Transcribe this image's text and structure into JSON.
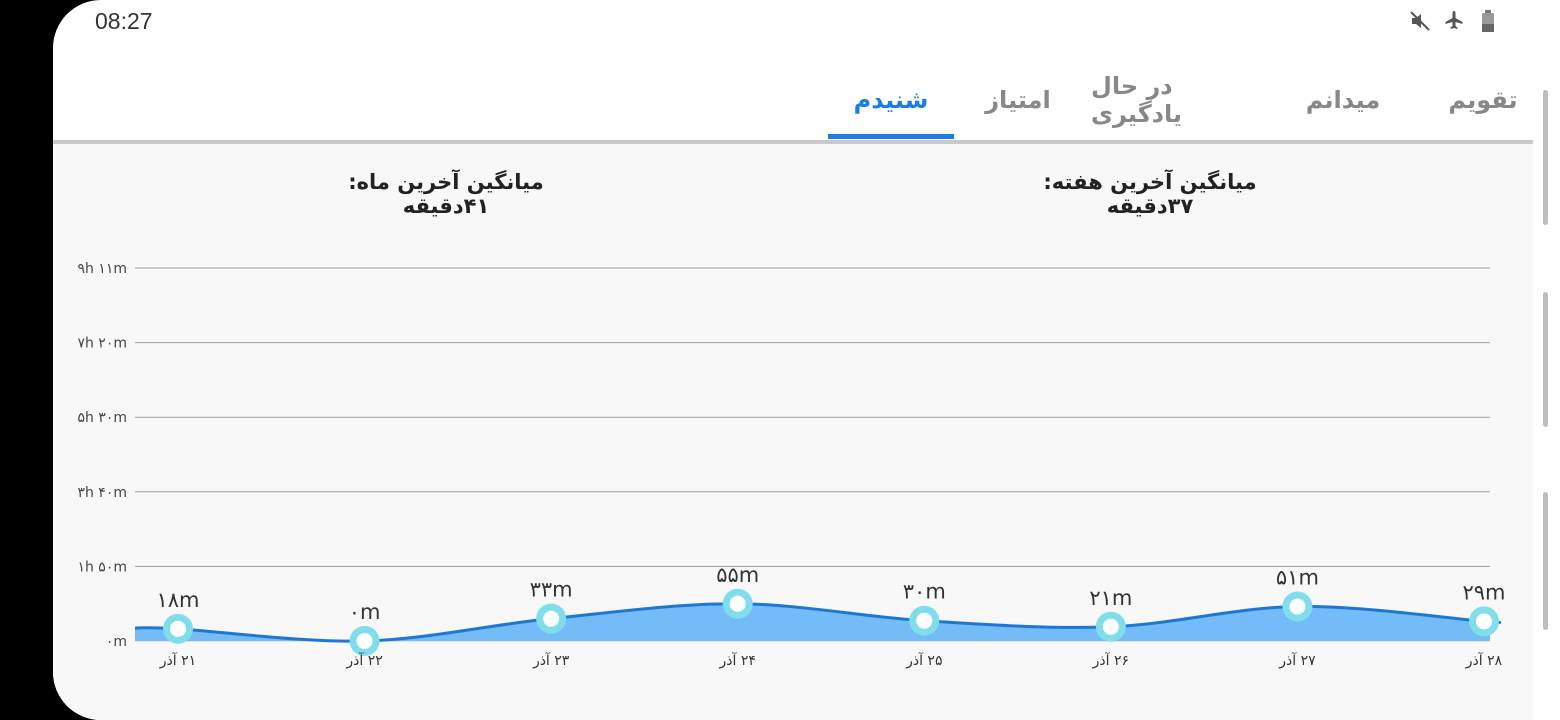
{
  "status": {
    "time": "08:27",
    "icons": [
      "mute-icon",
      "airplane-icon",
      "battery-icon"
    ]
  },
  "tabs": [
    {
      "label": "تقویم",
      "active": false
    },
    {
      "label": "میدانم",
      "active": false
    },
    {
      "label": "در حال یادگیری",
      "active": false
    },
    {
      "label": "امتیاز",
      "active": false
    },
    {
      "label": "شنیدم",
      "active": true
    }
  ],
  "averages": {
    "week": "میانگین آخرین هفته: ۳۷دقیقه",
    "month": "میانگین آخرین ماه: ۴۱دقیقه"
  },
  "colors": {
    "accent": "#1a7ee6",
    "area_fill": "#64b5f6",
    "point_ring": "#80deea"
  },
  "chart_data": {
    "type": "area",
    "y_tick_labels": [
      "۰m",
      "۱h ۵۰m",
      "۳h ۴۰m",
      "۵h ۳۰m",
      "۷h ۲۰m",
      "۹h ۱۱m"
    ],
    "ylim": [
      0,
      551
    ],
    "grid": true,
    "categories": [
      "۲۱ آذر",
      "۲۲ آذر",
      "۲۳ آذر",
      "۲۴ آذر",
      "۲۵ آذر",
      "۲۶ آذر",
      "۲۷ آذر",
      "۲۸ آذر"
    ],
    "values": [
      18,
      0,
      33,
      55,
      30,
      21,
      51,
      29
    ],
    "value_labels": [
      "۱۸m",
      "۰m",
      "۳۳m",
      "۵۵m",
      "۳۰m",
      "۲۱m",
      "۵۱m",
      "۲۹m"
    ]
  }
}
